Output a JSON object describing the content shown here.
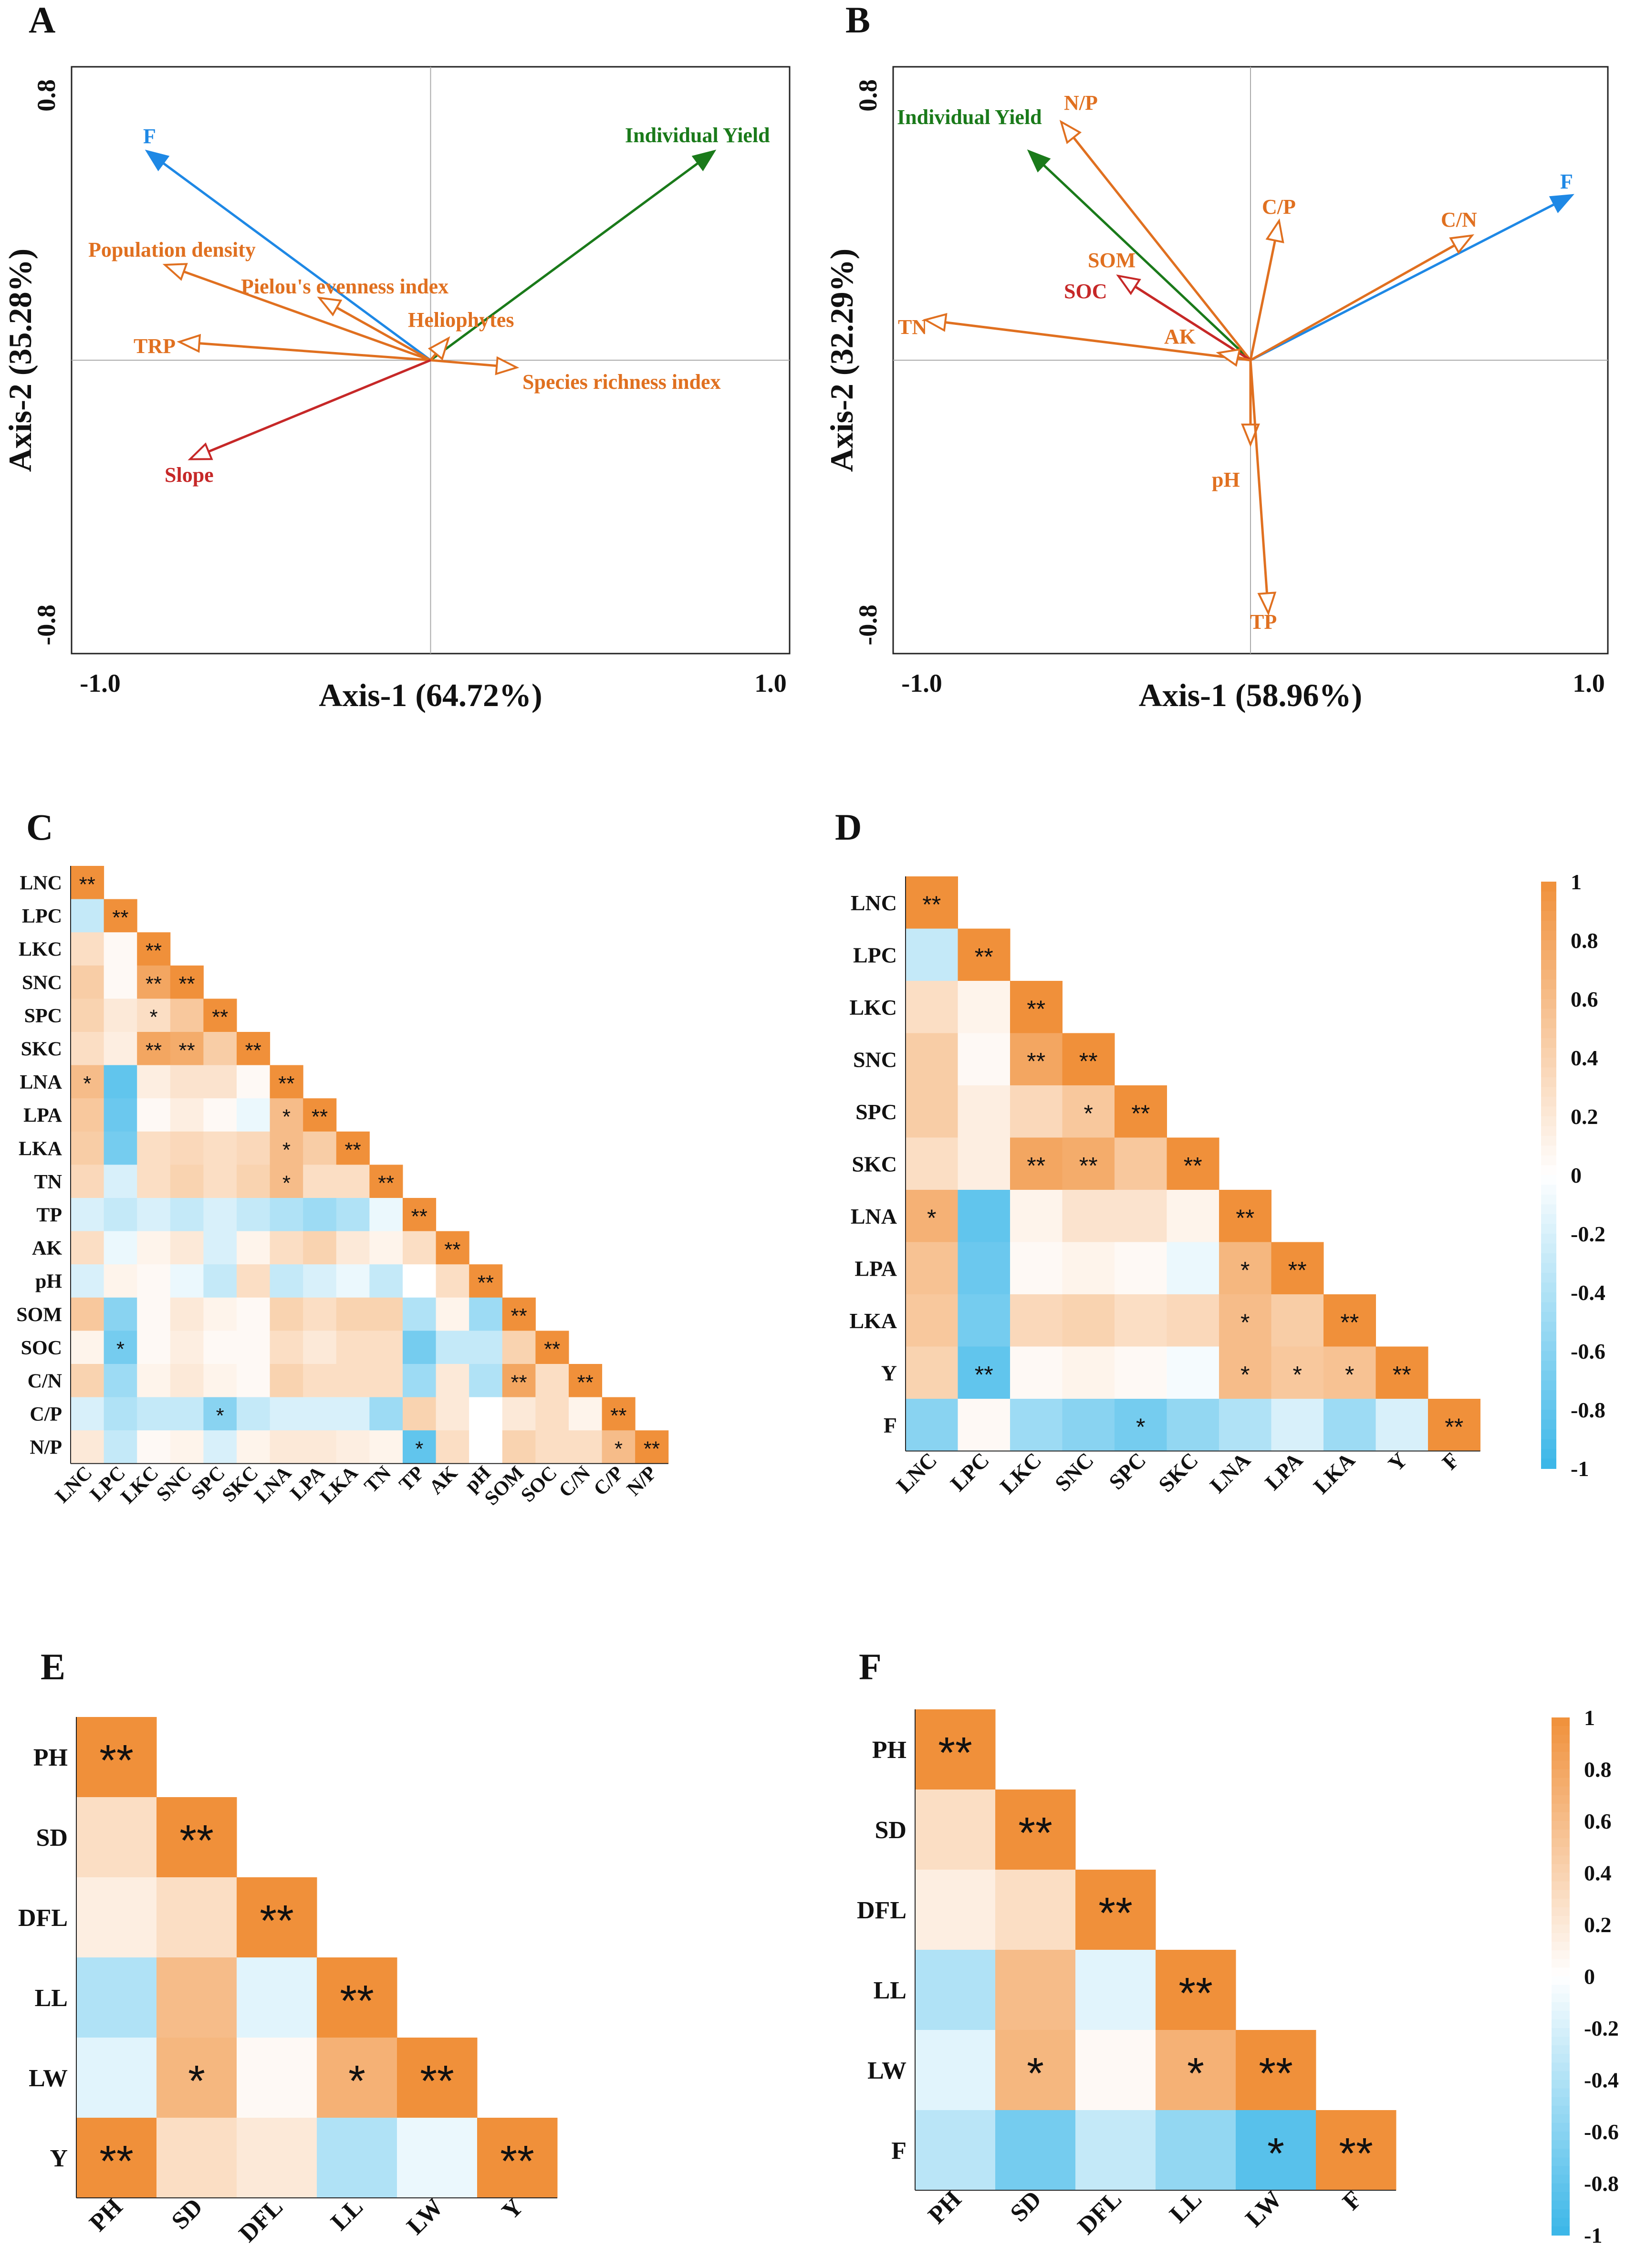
{
  "chart_data": [
    {
      "id": "A",
      "type": "scatter",
      "subtype": "ordination-biplot",
      "panel_label": "A",
      "xlabel": "Axis-1 (64.72%)",
      "ylabel": "Axis-2 (35.28%)",
      "xlim": [
        -1.0,
        1.0
      ],
      "ylim": [
        -0.8,
        0.8
      ],
      "x_tick_labels": [
        "-1.0",
        "1.0"
      ],
      "y_tick_labels": [
        "0.8",
        "-0.8"
      ],
      "vectors": [
        {
          "label": "F",
          "x": -0.79,
          "y": 0.57,
          "color": "#1E88E5",
          "head": "filled"
        },
        {
          "label": "Individual Yield",
          "x": 0.79,
          "y": 0.57,
          "color": "#1A7A1A",
          "head": "filled"
        },
        {
          "label": "Population density",
          "x": -0.74,
          "y": 0.26,
          "color": "#E07020",
          "head": "open"
        },
        {
          "label": "Pielou's evenness index",
          "x": -0.31,
          "y": 0.17,
          "color": "#E07020",
          "head": "open"
        },
        {
          "label": "Heliophytes",
          "x": 0.05,
          "y": 0.06,
          "color": "#E07020",
          "head": "open"
        },
        {
          "label": "TRP",
          "x": -0.7,
          "y": 0.05,
          "color": "#E07020",
          "head": "open"
        },
        {
          "label": "Species richness index",
          "x": 0.24,
          "y": -0.02,
          "color": "#E07020",
          "head": "open"
        },
        {
          "label": "Slope",
          "x": -0.67,
          "y": -0.27,
          "color": "#C62828",
          "head": "open"
        }
      ]
    },
    {
      "id": "B",
      "type": "scatter",
      "subtype": "ordination-biplot",
      "panel_label": "B",
      "xlabel": "Axis-1 (58.96%)",
      "ylabel": "Axis-2 (32.29%)",
      "xlim": [
        -1.0,
        1.0
      ],
      "ylim": [
        -0.8,
        0.8
      ],
      "x_tick_labels": [
        "-1.0",
        "1.0"
      ],
      "y_tick_labels": [
        "0.8",
        "-0.8"
      ],
      "vectors": [
        {
          "label": "F",
          "x": 0.9,
          "y": 0.45,
          "color": "#1E88E5",
          "head": "filled"
        },
        {
          "label": "Individual Yield",
          "x": -0.62,
          "y": 0.57,
          "color": "#1A7A1A",
          "head": "filled"
        },
        {
          "label": "N/P",
          "x": -0.53,
          "y": 0.65,
          "color": "#E07020",
          "head": "open"
        },
        {
          "label": "C/P",
          "x": 0.08,
          "y": 0.38,
          "color": "#E07020",
          "head": "open"
        },
        {
          "label": "C/N",
          "x": 0.62,
          "y": 0.34,
          "color": "#E07020",
          "head": "open"
        },
        {
          "label": "SOM",
          "x": -0.37,
          "y": 0.23,
          "color": "#E07020",
          "head": "open"
        },
        {
          "label": "SOC",
          "x": -0.37,
          "y": 0.23,
          "color": "#C62828",
          "head": "open"
        },
        {
          "label": "TN",
          "x": -0.91,
          "y": 0.11,
          "color": "#E07020",
          "head": "open"
        },
        {
          "label": "AK",
          "x": -0.09,
          "y": 0.02,
          "color": "#E07020",
          "head": "open"
        },
        {
          "label": "pH",
          "x": 0.0,
          "y": -0.23,
          "color": "#E07020",
          "head": "open"
        },
        {
          "label": "TP",
          "x": 0.05,
          "y": -0.69,
          "color": "#E07020",
          "head": "open"
        }
      ]
    },
    {
      "id": "C",
      "type": "heatmap",
      "panel_label": "C",
      "labels": [
        "LNC",
        "LPC",
        "LKC",
        "SNC",
        "SPC",
        "SKC",
        "LNA",
        "LPA",
        "LKA",
        "TN",
        "TP",
        "AK",
        "pH",
        "SOM",
        "SOC",
        "C/N",
        "C/P",
        "N/P"
      ],
      "colorbar": false,
      "matrix": [
        [
          1
        ],
        [
          -0.3,
          1
        ],
        [
          0.3,
          0.05,
          1
        ],
        [
          0.45,
          0.05,
          0.8,
          1
        ],
        [
          0.4,
          0.2,
          0.3,
          0.5,
          1
        ],
        [
          0.3,
          0.15,
          0.8,
          0.75,
          0.45,
          1
        ],
        [
          0.6,
          -0.8,
          0.15,
          0.25,
          0.25,
          0.05,
          1
        ],
        [
          0.5,
          -0.75,
          0.05,
          0.15,
          0.05,
          -0.1,
          0.6,
          1
        ],
        [
          0.45,
          -0.7,
          0.3,
          0.35,
          0.3,
          0.35,
          0.6,
          0.45,
          1
        ],
        [
          0.35,
          -0.2,
          0.3,
          0.4,
          0.3,
          0.4,
          0.6,
          0.3,
          0.3,
          1
        ],
        [
          -0.2,
          -0.3,
          -0.2,
          -0.3,
          -0.2,
          -0.3,
          -0.4,
          -0.5,
          -0.4,
          -0.1,
          1
        ],
        [
          0.3,
          -0.1,
          0.1,
          0.2,
          -0.2,
          0.1,
          0.3,
          0.4,
          0.2,
          0.1,
          0.3,
          1
        ],
        [
          -0.2,
          0.1,
          0.05,
          -0.1,
          -0.3,
          0.3,
          -0.3,
          -0.2,
          -0.1,
          -0.3,
          0.0,
          0.3,
          1
        ],
        [
          0.5,
          -0.6,
          0.05,
          0.2,
          0.1,
          0.05,
          0.4,
          0.3,
          0.4,
          0.4,
          -0.4,
          0.1,
          -0.5,
          1
        ],
        [
          0.1,
          -0.7,
          0.05,
          0.15,
          0.05,
          0.05,
          0.3,
          0.2,
          0.3,
          0.3,
          -0.7,
          -0.3,
          -0.3,
          0.4,
          1
        ],
        [
          0.4,
          -0.5,
          0.1,
          0.2,
          0.1,
          0.05,
          0.4,
          0.3,
          0.3,
          0.3,
          -0.5,
          0.2,
          -0.4,
          0.8,
          0.3,
          1
        ],
        [
          -0.2,
          -0.4,
          -0.3,
          -0.3,
          -0.6,
          -0.3,
          -0.2,
          -0.2,
          -0.2,
          -0.5,
          0.4,
          0.2,
          0.0,
          0.2,
          0.3,
          0.1,
          1
        ],
        [
          0.2,
          -0.3,
          0.05,
          0.1,
          -0.2,
          0.1,
          0.2,
          0.2,
          0.15,
          0.1,
          -0.8,
          0.3,
          0.0,
          0.4,
          0.3,
          0.3,
          0.6,
          1
        ]
      ],
      "stars": [
        [
          "**"
        ],
        [
          "",
          "**"
        ],
        [
          "",
          "",
          "**"
        ],
        [
          "",
          "",
          "**",
          "**"
        ],
        [
          "",
          "",
          "*",
          "",
          "**"
        ],
        [
          "",
          "",
          "**",
          "**",
          "",
          "**"
        ],
        [
          "*",
          "",
          "",
          "",
          "",
          "",
          "**"
        ],
        [
          "",
          "",
          "",
          "",
          "",
          "",
          "*",
          "**"
        ],
        [
          "",
          "",
          "",
          "",
          "",
          "",
          "*",
          "",
          "**"
        ],
        [
          "",
          "",
          "",
          "",
          "",
          "",
          "*",
          "",
          "",
          "**"
        ],
        [
          "",
          "",
          "",
          "",
          "",
          "",
          "",
          "",
          "",
          "",
          "**"
        ],
        [
          "",
          "",
          "",
          "",
          "",
          "",
          "",
          "",
          "",
          "",
          "",
          "**"
        ],
        [
          "",
          "",
          "",
          "",
          "",
          "",
          "",
          "",
          "",
          "",
          "",
          "",
          "**"
        ],
        [
          "",
          "",
          "",
          "",
          "",
          "",
          "",
          "",
          "",
          "",
          "",
          "",
          "",
          "**"
        ],
        [
          "",
          "*",
          "",
          "",
          "",
          "",
          "",
          "",
          "",
          "",
          "",
          "",
          "",
          "",
          "**"
        ],
        [
          "",
          "",
          "",
          "",
          "",
          "",
          "",
          "",
          "",
          "",
          "",
          "",
          "",
          "**",
          "",
          "**"
        ],
        [
          "",
          "",
          "",
          "",
          "*",
          "",
          "",
          "",
          "",
          "",
          "",
          "",
          "",
          "",
          "",
          "",
          "**"
        ],
        [
          "",
          "",
          "",
          "",
          "",
          "",
          "",
          "",
          "",
          "",
          "*",
          "",
          "",
          "",
          "",
          "",
          "*",
          "**"
        ]
      ]
    },
    {
      "id": "D",
      "type": "heatmap",
      "panel_label": "D",
      "labels": [
        "LNC",
        "LPC",
        "LKC",
        "SNC",
        "SPC",
        "SKC",
        "LNA",
        "LPA",
        "LKA",
        "Y",
        "F"
      ],
      "colorbar": true,
      "colorbar_ticks": [
        "1",
        "0.8",
        "0.6",
        "0.4",
        "0.2",
        "0",
        "-0.2",
        "-0.4",
        "-0.6",
        "-0.8",
        "-1"
      ],
      "matrix": [
        [
          1
        ],
        [
          -0.3,
          1
        ],
        [
          0.3,
          0.1,
          1
        ],
        [
          0.45,
          0.05,
          0.8,
          1
        ],
        [
          0.45,
          0.15,
          0.35,
          0.5,
          1
        ],
        [
          0.3,
          0.15,
          0.8,
          0.75,
          0.5,
          1
        ],
        [
          0.7,
          -0.8,
          0.1,
          0.25,
          0.25,
          0.1,
          1
        ],
        [
          0.55,
          -0.75,
          0.05,
          0.1,
          0.05,
          -0.1,
          0.65,
          1
        ],
        [
          0.5,
          -0.7,
          0.35,
          0.4,
          0.3,
          0.35,
          0.6,
          0.45,
          1
        ],
        [
          0.4,
          -0.8,
          0.05,
          0.1,
          0.05,
          -0.05,
          0.6,
          0.5,
          0.55,
          1
        ],
        [
          -0.6,
          0.05,
          -0.5,
          -0.6,
          -0.7,
          -0.55,
          -0.4,
          -0.2,
          -0.5,
          -0.2,
          1
        ]
      ],
      "stars": [
        [
          "**"
        ],
        [
          "",
          "**"
        ],
        [
          "",
          "",
          "**"
        ],
        [
          "",
          "",
          "**",
          "**"
        ],
        [
          "",
          "",
          "",
          "*",
          "**"
        ],
        [
          "",
          "",
          "**",
          "**",
          "",
          "**"
        ],
        [
          "*",
          "",
          "",
          "",
          "",
          "",
          "**"
        ],
        [
          "",
          "",
          "",
          "",
          "",
          "",
          "*",
          "**"
        ],
        [
          "",
          "",
          "",
          "",
          "",
          "",
          "*",
          "",
          "**"
        ],
        [
          "",
          "**",
          "",
          "",
          "",
          "",
          "*",
          "*",
          "*",
          "**"
        ],
        [
          "",
          "",
          "",
          "",
          "*",
          "",
          "",
          "",
          "",
          "",
          "**"
        ]
      ]
    },
    {
      "id": "E",
      "type": "heatmap",
      "panel_label": "E",
      "labels": [
        "PH",
        "SD",
        "DFL",
        "LL",
        "LW",
        "Y"
      ],
      "colorbar": false,
      "matrix": [
        [
          1
        ],
        [
          0.3,
          1
        ],
        [
          0.15,
          0.3,
          1
        ],
        [
          -0.4,
          0.6,
          -0.15,
          1
        ],
        [
          -0.15,
          0.65,
          0.05,
          0.7,
          1
        ],
        [
          1,
          0.3,
          0.2,
          -0.4,
          -0.1,
          1
        ]
      ],
      "stars": [
        [
          "**"
        ],
        [
          "",
          "**"
        ],
        [
          "",
          "",
          "**"
        ],
        [
          "",
          "",
          "",
          "**"
        ],
        [
          "",
          "*",
          "",
          "*",
          "**"
        ],
        [
          "**",
          "",
          "",
          "",
          "",
          "**"
        ]
      ]
    },
    {
      "id": "F",
      "type": "heatmap",
      "panel_label": "F",
      "labels": [
        "PH",
        "SD",
        "DFL",
        "LL",
        "LW",
        "F"
      ],
      "colorbar": true,
      "colorbar_ticks": [
        "1",
        "0.8",
        "0.6",
        "0.4",
        "0.2",
        "0",
        "-0.2",
        "-0.4",
        "-0.6",
        "-0.8",
        "-1"
      ],
      "matrix": [
        [
          1
        ],
        [
          0.3,
          1
        ],
        [
          0.15,
          0.3,
          1
        ],
        [
          -0.4,
          0.6,
          -0.15,
          1
        ],
        [
          -0.15,
          0.65,
          0.05,
          0.7,
          1
        ],
        [
          -0.35,
          -0.7,
          -0.3,
          -0.55,
          -0.85,
          1
        ]
      ],
      "stars": [
        [
          "**"
        ],
        [
          "",
          "**"
        ],
        [
          "",
          "",
          "**"
        ],
        [
          "",
          "",
          "",
          "**"
        ],
        [
          "",
          "*",
          "",
          "*",
          "**"
        ],
        [
          "",
          "",
          "",
          "",
          "*",
          "**"
        ]
      ]
    }
  ]
}
